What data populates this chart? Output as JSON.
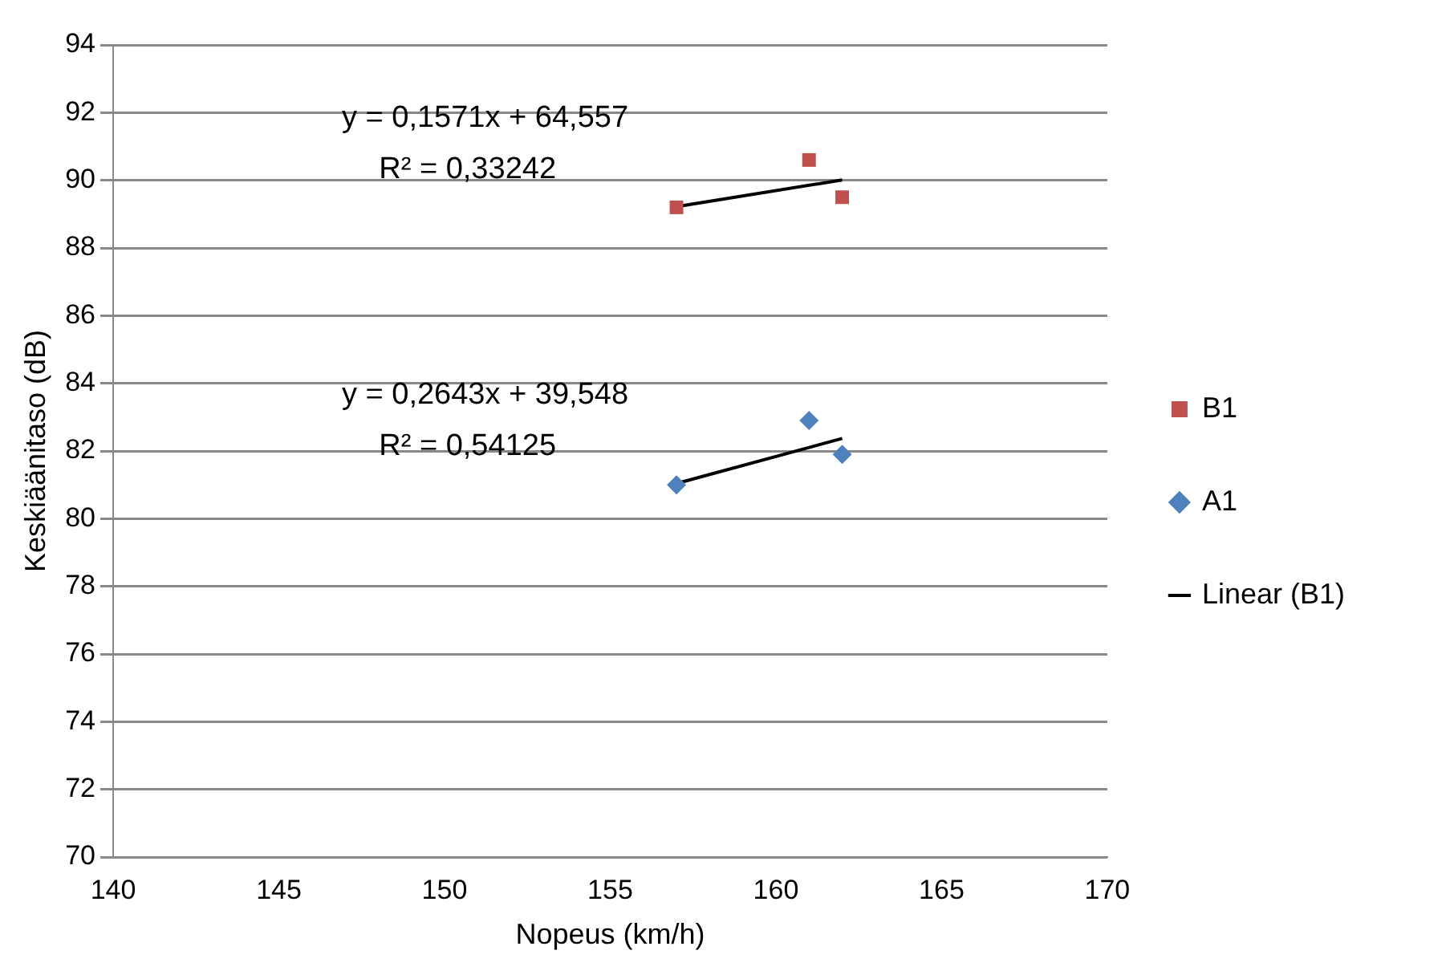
{
  "chart_data": {
    "type": "scatter",
    "xlabel": "Nopeus (km/h)",
    "ylabel": "Keskiäänitaso (dB)",
    "xlim": [
      140,
      170
    ],
    "xticks": [
      140,
      145,
      150,
      155,
      160,
      165,
      170
    ],
    "ylim": [
      70,
      94
    ],
    "yticks": [
      70,
      72,
      74,
      76,
      78,
      80,
      82,
      84,
      86,
      88,
      90,
      92,
      94
    ],
    "grid": "y",
    "legend": "right",
    "series": [
      {
        "name": "B1",
        "marker": "square",
        "color": "#c0504d",
        "x": [
          157,
          161,
          162
        ],
        "values": [
          89.2,
          90.6,
          89.5
        ]
      },
      {
        "name": "A1",
        "marker": "diamond",
        "color": "#4f81bd",
        "x": [
          157,
          161,
          162
        ],
        "values": [
          81.0,
          82.9,
          81.9
        ]
      },
      {
        "name": "Linear (B1)",
        "type": "line",
        "marker": "none",
        "color": "#000000",
        "x": [
          157,
          162
        ],
        "values": [
          89.22,
          90.01
        ]
      },
      {
        "type": "line",
        "marker": "none",
        "color": "#000000",
        "x": [
          157,
          162
        ],
        "values": [
          81.04,
          82.37
        ]
      }
    ],
    "annotations": [
      "y = 0,1571x + 64,557",
      "R² = 0,33242",
      "y = 0,2643x + 39,548",
      "R² = 0,54125"
    ]
  }
}
